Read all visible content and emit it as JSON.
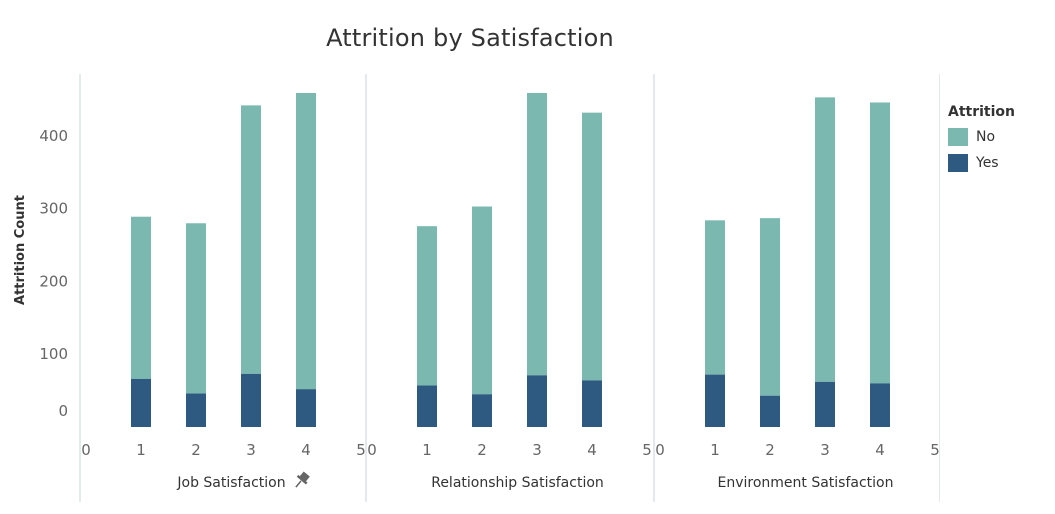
{
  "chart_data": {
    "type": "bar",
    "stacked": true,
    "title": "Attrition by Satisfaction",
    "ylabel": "Attrition Count",
    "ylim": [
      0,
      470
    ],
    "yticks": [
      0,
      100,
      200,
      300,
      400
    ],
    "xticks": [
      0,
      1,
      2,
      3,
      4,
      5
    ],
    "xlim": [
      0,
      5
    ],
    "grid": false,
    "legend": {
      "title": "Attrition",
      "position": "right",
      "items": [
        {
          "label": "No",
          "color": "#7ab8b0"
        },
        {
          "label": "Yes",
          "color": "#2e5a82"
        }
      ]
    },
    "panels": [
      {
        "xlabel": "Job Satisfaction",
        "categories": [
          1,
          2,
          3,
          4
        ],
        "series": [
          {
            "name": "Yes",
            "values": [
              66,
              46,
              73,
              52
            ]
          },
          {
            "name": "No",
            "values": [
              223,
              234,
              369,
              407
            ]
          }
        ]
      },
      {
        "xlabel": "Relationship Satisfaction",
        "categories": [
          1,
          2,
          3,
          4
        ],
        "series": [
          {
            "name": "Yes",
            "values": [
              57,
              45,
              71,
              64
            ]
          },
          {
            "name": "No",
            "values": [
              219,
              258,
              388,
              368
            ]
          }
        ]
      },
      {
        "xlabel": "Environment Satisfaction",
        "categories": [
          1,
          2,
          3,
          4
        ],
        "series": [
          {
            "name": "Yes",
            "values": [
              72,
              43,
              62,
              60
            ]
          },
          {
            "name": "No",
            "values": [
              212,
              244,
              391,
              386
            ]
          }
        ]
      }
    ]
  },
  "pin_icon": "pin-icon"
}
